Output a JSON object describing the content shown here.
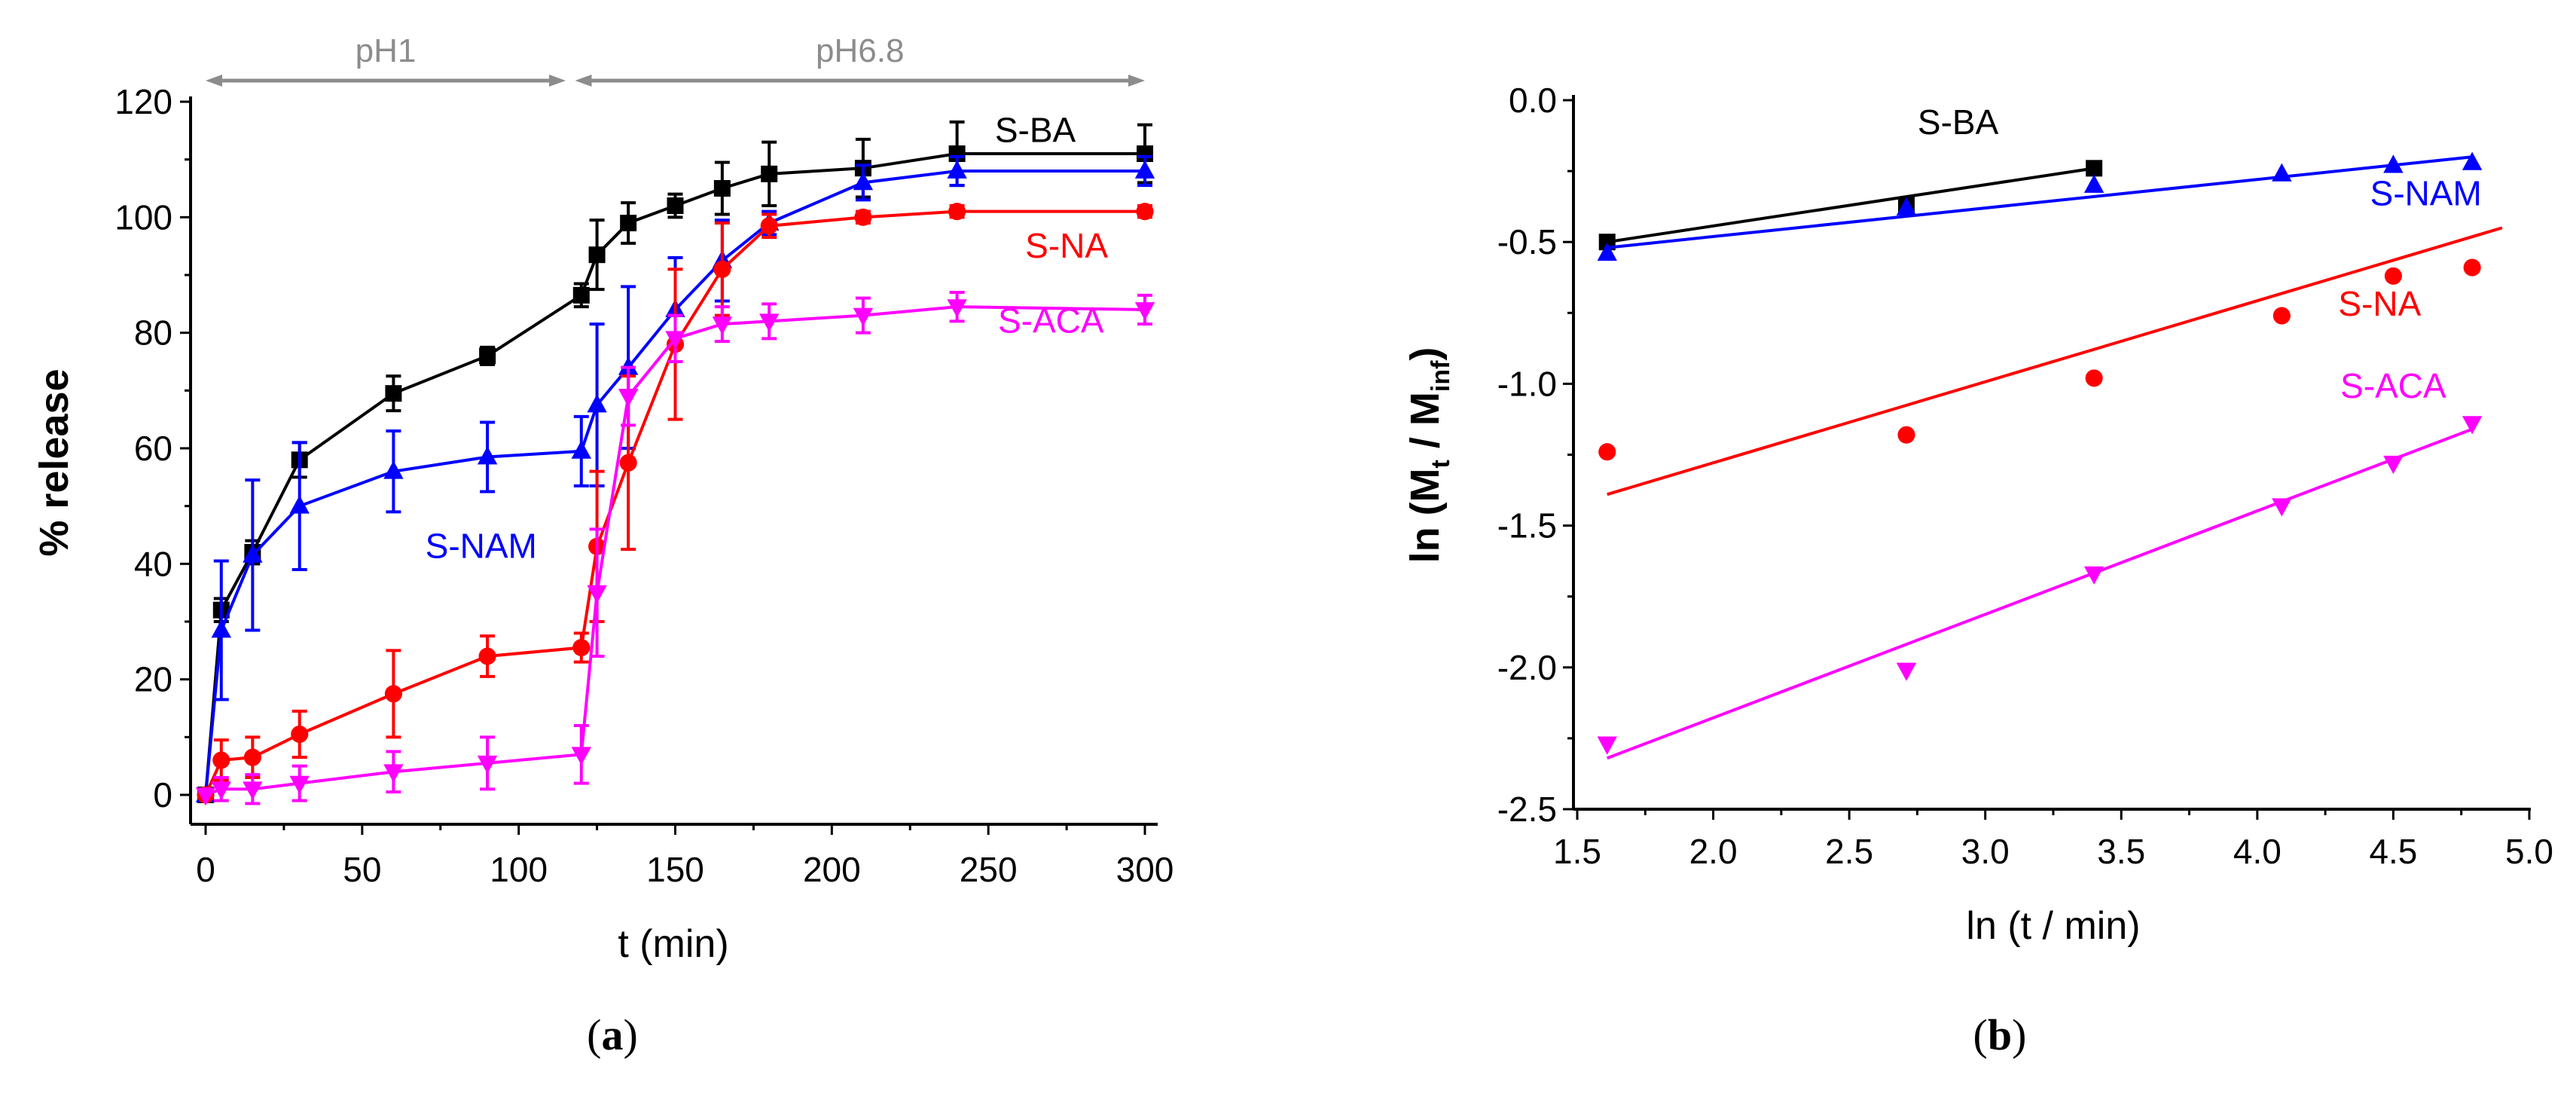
{
  "chart_data": [
    {
      "type": "line",
      "panel": "a",
      "caption_open": "(",
      "caption_letter": "a",
      "caption_close": ")",
      "xlabel": "t (min)",
      "ylabel": "% release",
      "xlim": [
        -5,
        305
      ],
      "ylim": [
        -5,
        120
      ],
      "xticks": [
        0,
        50,
        100,
        150,
        200,
        250,
        300
      ],
      "yticks": [
        0,
        20,
        40,
        60,
        80,
        100,
        120
      ],
      "annotations": [
        {
          "text": "pH1",
          "from": 0,
          "to": 115
        },
        {
          "text": "pH6.8",
          "from": 118,
          "to": 300
        }
      ],
      "x": [
        0,
        5,
        15,
        30,
        60,
        90,
        120,
        125,
        135,
        150,
        165,
        180,
        210,
        240,
        300
      ],
      "series": [
        {
          "name": "S-BA",
          "color": "#000000",
          "marker": "square",
          "label_at": [
            265,
            113
          ],
          "values": [
            0,
            32,
            42,
            58,
            69.5,
            76,
            86.5,
            93.5,
            99,
            102,
            105,
            107.5,
            108.5,
            111,
            111
          ],
          "errors": [
            0,
            2,
            2,
            3,
            3,
            1.5,
            2,
            6,
            3.5,
            2,
            4.5,
            5.5,
            5,
            5.5,
            5
          ]
        },
        {
          "name": "S-NAM",
          "color": "#0000ff",
          "marker": "triangle-up",
          "label_at": [
            88,
            41
          ],
          "values": [
            0,
            28.5,
            41.5,
            50,
            56,
            58.5,
            59.5,
            67.5,
            74,
            84,
            92.5,
            99,
            106,
            108,
            108
          ],
          "errors": [
            0,
            12,
            13,
            11,
            7,
            6,
            6,
            14,
            14,
            9,
            7,
            2,
            3,
            2.5,
            2.5
          ]
        },
        {
          "name": "S-NA",
          "color": "#ff0000",
          "marker": "circle",
          "label_at": [
            275,
            93
          ],
          "values": [
            0,
            6,
            6.5,
            10.5,
            17.5,
            24,
            25.5,
            43,
            57.5,
            78,
            91,
            98.5,
            100,
            101,
            101
          ],
          "errors": [
            0,
            3.5,
            3.5,
            4,
            7.5,
            3.5,
            2.5,
            13,
            15,
            13,
            8,
            2,
            1,
            1,
            1
          ]
        },
        {
          "name": "S-ACA",
          "color": "#ff00ff",
          "marker": "triangle-down",
          "label_at": [
            270,
            80
          ],
          "values": [
            0,
            1,
            1,
            2,
            4,
            5.5,
            7,
            35,
            69,
            79,
            81.5,
            82,
            83,
            84.5,
            84
          ],
          "errors": [
            0,
            2,
            2.5,
            3,
            3.5,
            4.5,
            5,
            11,
            5,
            4,
            3,
            3,
            3,
            2.5,
            2.5
          ]
        }
      ]
    },
    {
      "type": "scatter",
      "panel": "b",
      "caption_open": "(",
      "caption_letter": "b",
      "caption_close": ")",
      "xlabel": "ln (t / min)",
      "ylabel_main": "ln (M",
      "ylabel_sub1": "t",
      "ylabel_mid": " / M",
      "ylabel_sub2": "inf",
      "ylabel_end": ")",
      "xlim": [
        1.5,
        5.0
      ],
      "ylim": [
        -2.5,
        0.0
      ],
      "xticks": [
        "1.5",
        "2.0",
        "2.5",
        "3.0",
        "3.5",
        "4.0",
        "4.5",
        "5.0"
      ],
      "yticks": [
        "0.0",
        "-0.5",
        "-1.0",
        "-1.5",
        "-2.0",
        "-2.5"
      ],
      "series": [
        {
          "name": "S-BA",
          "color": "#000000",
          "marker": "square",
          "label_at": [
            2.9,
            -0.12
          ],
          "x": [
            1.61,
            2.71,
            3.4
          ],
          "y": [
            -0.5,
            -0.37,
            -0.24
          ],
          "fit": [
            [
              1.61,
              -0.5
            ],
            [
              3.4,
              -0.24
            ]
          ]
        },
        {
          "name": "S-NAM",
          "color": "#0000ff",
          "marker": "triangle-up",
          "label_at": [
            4.62,
            -0.37
          ],
          "x": [
            1.61,
            2.71,
            3.4,
            4.09,
            4.5,
            4.79
          ],
          "y": [
            -0.54,
            -0.38,
            -0.3,
            -0.26,
            -0.23,
            -0.22
          ],
          "fit": [
            [
              1.61,
              -0.52
            ],
            [
              4.79,
              -0.2
            ]
          ]
        },
        {
          "name": "S-NA",
          "color": "#ff0000",
          "marker": "circle",
          "label_at": [
            4.45,
            -0.76
          ],
          "x": [
            1.61,
            2.71,
            3.4,
            4.09,
            4.5,
            4.79
          ],
          "y": [
            -1.24,
            -1.18,
            -0.98,
            -0.76,
            -0.62,
            -0.59
          ],
          "fit": [
            [
              1.61,
              -1.39
            ],
            [
              4.9,
              -0.45
            ]
          ]
        },
        {
          "name": "S-ACA",
          "color": "#ff00ff",
          "marker": "triangle-down",
          "label_at": [
            4.5,
            -1.05
          ],
          "x": [
            1.61,
            2.71,
            3.4,
            4.09,
            4.5,
            4.79
          ],
          "y": [
            -2.27,
            -2.01,
            -1.67,
            -1.43,
            -1.28,
            -1.14
          ],
          "fit": [
            [
              1.61,
              -2.32
            ],
            [
              4.79,
              -1.16
            ]
          ]
        }
      ]
    }
  ]
}
